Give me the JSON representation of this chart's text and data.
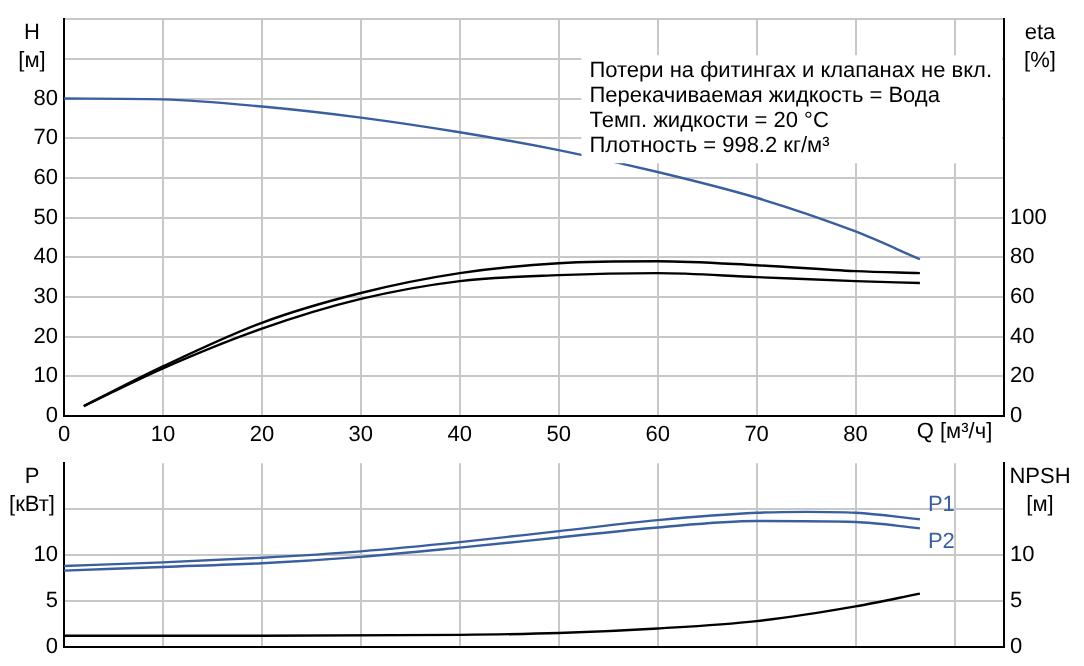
{
  "chart_data": [
    {
      "type": "line",
      "ylabel": "H [м]",
      "y2label": "eta [%]",
      "xlabel": "Q [м³/ч]",
      "annotations": [
        "Потери на фитингах и клапанах не вкл.",
        "Перекачиваемая жидкость = Вода",
        "Темп. жидкости = 20 °C",
        "Плотность = 998.2 кг/м³"
      ],
      "series": [
        {
          "color": "#3a5fa0",
          "x": [
            0,
            10,
            20,
            30,
            40,
            50,
            60,
            70,
            80,
            86.5
          ],
          "values": [
            80,
            79.8,
            78,
            75.2,
            71.5,
            67,
            61.5,
            55,
            46.5,
            39.5
          ]
        },
        {
          "color": "#000000",
          "axis": "y2",
          "x": [
            2,
            10,
            20,
            30,
            40,
            50,
            60,
            70,
            80,
            86.5
          ],
          "values": [
            5,
            25,
            47,
            62,
            72,
            77,
            78,
            76,
            73,
            72
          ]
        },
        {
          "color": "#000000",
          "axis": "y2",
          "x": [
            2,
            10,
            20,
            30,
            40,
            50,
            60,
            70,
            80,
            86.5
          ],
          "values": [
            5,
            24,
            44,
            59,
            68,
            71,
            72,
            70,
            68,
            67
          ]
        }
      ],
      "xlim": [
        0,
        95
      ],
      "xticks": [
        0,
        10,
        20,
        30,
        40,
        50,
        60,
        70,
        80,
        {
          "value": 90,
          "label": null
        }
      ],
      "ylim": [
        0,
        100
      ],
      "yticks": [
        0,
        10,
        20,
        30,
        40,
        50,
        60,
        70,
        80,
        {
          "value": 90,
          "label": null
        },
        {
          "value": 100,
          "label": null
        }
      ],
      "y2lim": [
        0,
        200
      ],
      "y2ticks": [
        0,
        20,
        40,
        60,
        80,
        100
      ],
      "grid": true,
      "legend": false,
      "marker": "none",
      "line_style": "solid"
    },
    {
      "type": "line",
      "ylabel": "P [кВт]",
      "y2label": "NPSH [м]",
      "series": [
        {
          "name": "P1",
          "color": "#3a5fa0",
          "x": [
            0,
            10,
            20,
            30,
            40,
            50,
            60,
            70,
            75,
            80,
            86.5
          ],
          "values": [
            8.8,
            9.2,
            9.7,
            10.4,
            11.4,
            12.6,
            13.8,
            14.6,
            14.7,
            14.6,
            13.9
          ]
        },
        {
          "name": "P2",
          "color": "#3a5fa0",
          "x": [
            0,
            10,
            20,
            30,
            40,
            50,
            60,
            70,
            80,
            86.5
          ],
          "values": [
            8.3,
            8.7,
            9.1,
            9.8,
            10.8,
            11.9,
            13,
            13.7,
            13.6,
            12.9
          ]
        },
        {
          "color": "#000000",
          "axis": "y2",
          "x": [
            0,
            20,
            40,
            50,
            60,
            70,
            80,
            86.5
          ],
          "values": [
            1.2,
            1.2,
            1.3,
            1.5,
            2,
            2.8,
            4.4,
            5.8
          ]
        }
      ],
      "xlim": [
        0,
        95
      ],
      "xticks": [
        0,
        10,
        20,
        30,
        40,
        50,
        60,
        70,
        80,
        90
      ],
      "ylim": [
        0,
        20
      ],
      "yticks": [
        0,
        5,
        10,
        {
          "value": 15,
          "label": null
        }
      ],
      "y2lim": [
        0,
        20
      ],
      "y2ticks": [
        0,
        5,
        10
      ],
      "grid": true,
      "legend": false,
      "marker": "none",
      "line_style": "solid",
      "tick_labels": "y"
    }
  ]
}
